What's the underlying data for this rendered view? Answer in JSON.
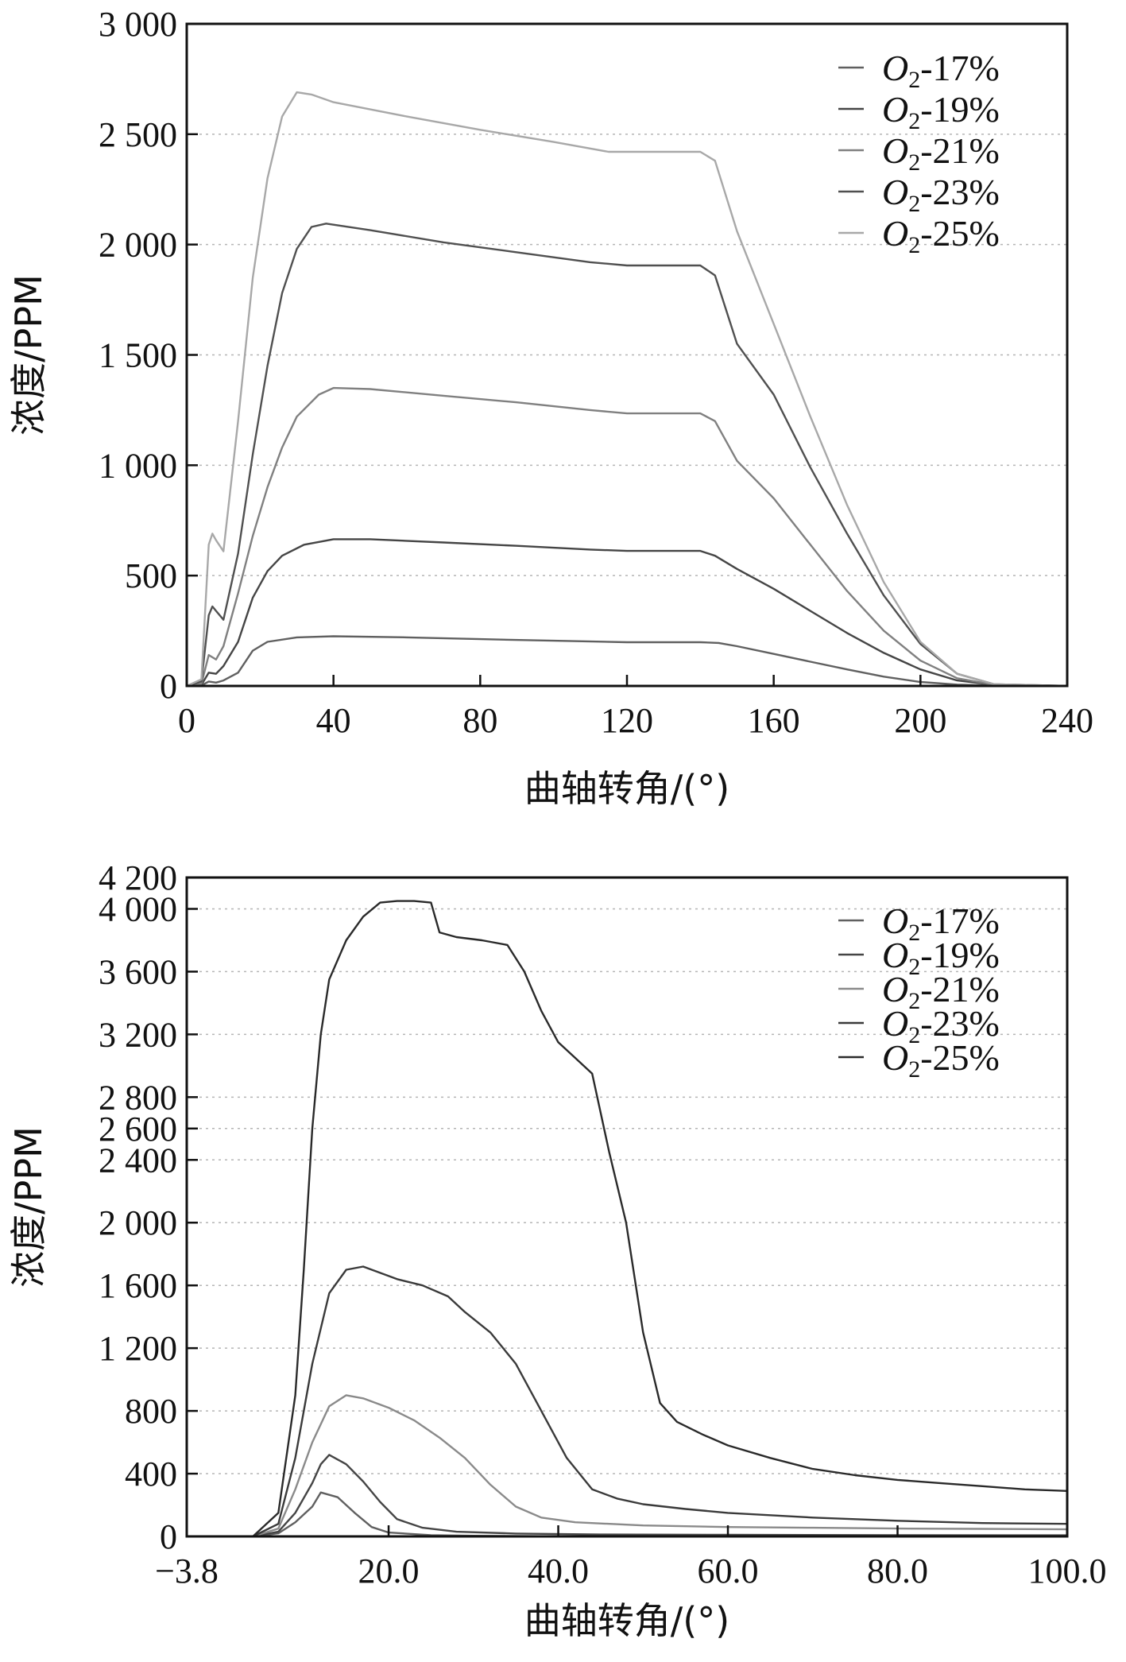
{
  "chart_data": [
    {
      "type": "line",
      "xlabel": "曲轴转角/(°)",
      "ylabel": "浓度/PPM",
      "xlim": [
        0,
        240
      ],
      "ylim": [
        0,
        3000
      ],
      "x_ticks": [
        0,
        40,
        80,
        120,
        160,
        200,
        240
      ],
      "x_tick_labels": [
        "0",
        "40",
        "80",
        "120",
        "160",
        "200",
        "240"
      ],
      "y_ticks": [
        0,
        500,
        1000,
        1500,
        2000,
        2500,
        3000
      ],
      "y_tick_labels": [
        "0",
        "500",
        "1 000",
        "1 500",
        "2 000",
        "2 500",
        "3 000"
      ],
      "grid": "horizontal dotted",
      "legend_position": "top-right",
      "series": [
        {
          "name": "O2-17%",
          "color": "#606060",
          "points": [
            [
              0,
              0
            ],
            [
              4,
              2
            ],
            [
              6,
              20
            ],
            [
              8,
              15
            ],
            [
              10,
              25
            ],
            [
              14,
              60
            ],
            [
              18,
              160
            ],
            [
              22,
              200
            ],
            [
              30,
              220
            ],
            [
              40,
              225
            ],
            [
              60,
              220
            ],
            [
              80,
              212
            ],
            [
              100,
              205
            ],
            [
              120,
              198
            ],
            [
              140,
              198
            ],
            [
              145,
              195
            ],
            [
              150,
              180
            ],
            [
              160,
              145
            ],
            [
              170,
              110
            ],
            [
              180,
              75
            ],
            [
              190,
              42
            ],
            [
              200,
              18
            ],
            [
              210,
              6
            ],
            [
              220,
              2
            ],
            [
              240,
              0
            ]
          ]
        },
        {
          "name": "O2-19%",
          "color": "#454545",
          "points": [
            [
              0,
              0
            ],
            [
              4,
              5
            ],
            [
              6,
              60
            ],
            [
              8,
              55
            ],
            [
              10,
              90
            ],
            [
              14,
              200
            ],
            [
              18,
              400
            ],
            [
              22,
              520
            ],
            [
              26,
              590
            ],
            [
              32,
              640
            ],
            [
              40,
              665
            ],
            [
              50,
              665
            ],
            [
              70,
              650
            ],
            [
              90,
              635
            ],
            [
              110,
              618
            ],
            [
              120,
              612
            ],
            [
              140,
              612
            ],
            [
              144,
              590
            ],
            [
              150,
              530
            ],
            [
              160,
              440
            ],
            [
              170,
              340
            ],
            [
              180,
              240
            ],
            [
              190,
              150
            ],
            [
              200,
              75
            ],
            [
              210,
              25
            ],
            [
              220,
              5
            ],
            [
              240,
              0
            ]
          ]
        },
        {
          "name": "O2-21%",
          "color": "#808080",
          "points": [
            [
              0,
              0
            ],
            [
              4,
              10
            ],
            [
              6,
              140
            ],
            [
              8,
              120
            ],
            [
              10,
              180
            ],
            [
              14,
              420
            ],
            [
              18,
              680
            ],
            [
              22,
              900
            ],
            [
              26,
              1080
            ],
            [
              30,
              1220
            ],
            [
              36,
              1320
            ],
            [
              40,
              1350
            ],
            [
              50,
              1345
            ],
            [
              70,
              1315
            ],
            [
              90,
              1285
            ],
            [
              110,
              1250
            ],
            [
              120,
              1235
            ],
            [
              140,
              1235
            ],
            [
              144,
              1200
            ],
            [
              150,
              1020
            ],
            [
              160,
              850
            ],
            [
              170,
              640
            ],
            [
              180,
              430
            ],
            [
              190,
              250
            ],
            [
              200,
              115
            ],
            [
              210,
              35
            ],
            [
              220,
              5
            ],
            [
              240,
              0
            ]
          ]
        },
        {
          "name": "O2-23%",
          "color": "#505050",
          "points": [
            [
              0,
              0
            ],
            [
              4,
              20
            ],
            [
              6,
              320
            ],
            [
              7,
              360
            ],
            [
              8,
              340
            ],
            [
              10,
              300
            ],
            [
              14,
              600
            ],
            [
              18,
              1050
            ],
            [
              22,
              1450
            ],
            [
              26,
              1780
            ],
            [
              30,
              1980
            ],
            [
              34,
              2080
            ],
            [
              38,
              2095
            ],
            [
              50,
              2065
            ],
            [
              70,
              2010
            ],
            [
              90,
              1965
            ],
            [
              110,
              1920
            ],
            [
              120,
              1905
            ],
            [
              140,
              1905
            ],
            [
              144,
              1860
            ],
            [
              150,
              1550
            ],
            [
              160,
              1320
            ],
            [
              170,
              990
            ],
            [
              180,
              690
            ],
            [
              190,
              410
            ],
            [
              200,
              190
            ],
            [
              210,
              55
            ],
            [
              220,
              8
            ],
            [
              240,
              0
            ]
          ]
        },
        {
          "name": "O2-25%",
          "color": "#a8a8a8",
          "points": [
            [
              0,
              0
            ],
            [
              4,
              30
            ],
            [
              6,
              640
            ],
            [
              7,
              690
            ],
            [
              8,
              660
            ],
            [
              10,
              610
            ],
            [
              14,
              1200
            ],
            [
              18,
              1850
            ],
            [
              22,
              2300
            ],
            [
              26,
              2580
            ],
            [
              30,
              2690
            ],
            [
              34,
              2680
            ],
            [
              40,
              2645
            ],
            [
              60,
              2580
            ],
            [
              80,
              2520
            ],
            [
              100,
              2465
            ],
            [
              115,
              2420
            ],
            [
              140,
              2420
            ],
            [
              144,
              2380
            ],
            [
              150,
              2060
            ],
            [
              160,
              1640
            ],
            [
              170,
              1220
            ],
            [
              180,
              820
            ],
            [
              190,
              470
            ],
            [
              200,
              200
            ],
            [
              210,
              55
            ],
            [
              220,
              8
            ],
            [
              240,
              0
            ]
          ]
        }
      ]
    },
    {
      "type": "line",
      "xlabel": "曲轴转角/(°)",
      "ylabel": "浓度/PPM",
      "xlim": [
        -3.8,
        100
      ],
      "ylim": [
        0,
        4200
      ],
      "x_ticks": [
        -3.8,
        20,
        40,
        60,
        80,
        100
      ],
      "x_tick_labels": [
        "−3.8",
        "20.0",
        "40.0",
        "60.0",
        "80.0",
        "100.0"
      ],
      "y_ticks": [
        0,
        400,
        800,
        1200,
        1600,
        2000,
        2400,
        2600,
        2800,
        3200,
        3600,
        4000,
        4200
      ],
      "y_tick_labels": [
        "0",
        "400",
        "800",
        "1 200",
        "1 600",
        "2 000",
        "2 400",
        "2 600",
        "2 800",
        "3 200",
        "3 600",
        "4 000",
        "4 200"
      ],
      "grid": "horizontal dotted",
      "legend_position": "top-right",
      "series": [
        {
          "name": "O2-17%",
          "color": "#606060",
          "points": [
            [
              -3.8,
              0
            ],
            [
              4,
              0
            ],
            [
              7,
              20
            ],
            [
              9,
              90
            ],
            [
              11,
              190
            ],
            [
              12,
              280
            ],
            [
              14,
              250
            ],
            [
              16,
              150
            ],
            [
              18,
              60
            ],
            [
              20,
              25
            ],
            [
              25,
              8
            ],
            [
              30,
              4
            ],
            [
              40,
              1
            ],
            [
              60,
              0
            ],
            [
              100,
              0
            ]
          ]
        },
        {
          "name": "O2-19%",
          "color": "#454545",
          "points": [
            [
              -3.8,
              0
            ],
            [
              4,
              0
            ],
            [
              7,
              30
            ],
            [
              9,
              150
            ],
            [
              11,
              340
            ],
            [
              12,
              460
            ],
            [
              13,
              520
            ],
            [
              15,
              460
            ],
            [
              17,
              350
            ],
            [
              19,
              220
            ],
            [
              21,
              110
            ],
            [
              24,
              55
            ],
            [
              28,
              30
            ],
            [
              35,
              18
            ],
            [
              45,
              12
            ],
            [
              60,
              10
            ],
            [
              80,
              8
            ],
            [
              100,
              7
            ]
          ]
        },
        {
          "name": "O2-21%",
          "color": "#8a8a8a",
          "points": [
            [
              -3.8,
              0
            ],
            [
              4,
              0
            ],
            [
              7,
              50
            ],
            [
              9,
              300
            ],
            [
              11,
              600
            ],
            [
              13,
              830
            ],
            [
              15,
              900
            ],
            [
              17,
              880
            ],
            [
              20,
              820
            ],
            [
              23,
              740
            ],
            [
              26,
              630
            ],
            [
              29,
              500
            ],
            [
              32,
              330
            ],
            [
              35,
              190
            ],
            [
              38,
              120
            ],
            [
              42,
              90
            ],
            [
              50,
              70
            ],
            [
              60,
              60
            ],
            [
              70,
              55
            ],
            [
              80,
              50
            ],
            [
              90,
              48
            ],
            [
              100,
              45
            ]
          ]
        },
        {
          "name": "O2-23%",
          "color": "#3a3a3a",
          "points": [
            [
              -3.8,
              0
            ],
            [
              4,
              0
            ],
            [
              7,
              80
            ],
            [
              9,
              500
            ],
            [
              11,
              1100
            ],
            [
              13,
              1550
            ],
            [
              15,
              1700
            ],
            [
              17,
              1720
            ],
            [
              19,
              1680
            ],
            [
              21,
              1640
            ],
            [
              24,
              1600
            ],
            [
              27,
              1530
            ],
            [
              29,
              1430
            ],
            [
              32,
              1300
            ],
            [
              35,
              1100
            ],
            [
              38,
              800
            ],
            [
              41,
              500
            ],
            [
              44,
              300
            ],
            [
              47,
              240
            ],
            [
              50,
              205
            ],
            [
              55,
              175
            ],
            [
              60,
              150
            ],
            [
              70,
              120
            ],
            [
              80,
              100
            ],
            [
              90,
              85
            ],
            [
              100,
              80
            ]
          ]
        },
        {
          "name": "O2-25%",
          "color": "#2a2a2a",
          "points": [
            [
              -3.8,
              0
            ],
            [
              4,
              0
            ],
            [
              7,
              150
            ],
            [
              9,
              900
            ],
            [
              10,
              1700
            ],
            [
              11,
              2600
            ],
            [
              12,
              3200
            ],
            [
              13,
              3550
            ],
            [
              15,
              3800
            ],
            [
              17,
              3950
            ],
            [
              19,
              4040
            ],
            [
              21,
              4050
            ],
            [
              23,
              4050
            ],
            [
              25,
              4040
            ],
            [
              26,
              3850
            ],
            [
              28,
              3820
            ],
            [
              31,
              3800
            ],
            [
              34,
              3770
            ],
            [
              36,
              3600
            ],
            [
              38,
              3350
            ],
            [
              40,
              3150
            ],
            [
              42,
              3050
            ],
            [
              44,
              2950
            ],
            [
              46,
              2450
            ],
            [
              48,
              2000
            ],
            [
              50,
              1300
            ],
            [
              52,
              850
            ],
            [
              54,
              730
            ],
            [
              57,
              650
            ],
            [
              60,
              580
            ],
            [
              65,
              500
            ],
            [
              70,
              430
            ],
            [
              75,
              390
            ],
            [
              80,
              360
            ],
            [
              85,
              340
            ],
            [
              90,
              320
            ],
            [
              95,
              300
            ],
            [
              100,
              290
            ]
          ]
        }
      ]
    }
  ]
}
